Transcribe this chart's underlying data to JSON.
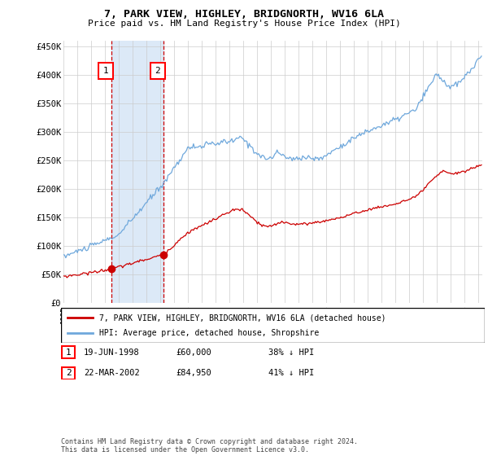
{
  "title": "7, PARK VIEW, HIGHLEY, BRIDGNORTH, WV16 6LA",
  "subtitle": "Price paid vs. HM Land Registry's House Price Index (HPI)",
  "legend_line1": "7, PARK VIEW, HIGHLEY, BRIDGNORTH, WV16 6LA (detached house)",
  "legend_line2": "HPI: Average price, detached house, Shropshire",
  "sale1_date": "19-JUN-1998",
  "sale1_price": 60000,
  "sale1_pct": "38% ↓ HPI",
  "sale2_date": "22-MAR-2002",
  "sale2_price": 84950,
  "sale2_pct": "41% ↓ HPI",
  "footnote": "Contains HM Land Registry data © Crown copyright and database right 2024.\nThis data is licensed under the Open Government Licence v3.0.",
  "hpi_color": "#6fa8dc",
  "price_color": "#cc0000",
  "bg_color": "#ffffff",
  "grid_color": "#cccccc",
  "shade_color": "#dce9f7",
  "vline_color": "#cc0000",
  "ylim": [
    0,
    460000
  ],
  "yticks": [
    0,
    50000,
    100000,
    150000,
    200000,
    250000,
    300000,
    350000,
    400000,
    450000
  ],
  "sale1_year": 1998.46,
  "sale2_year": 2002.22,
  "xmin": 1995.0,
  "xmax": 2025.3
}
